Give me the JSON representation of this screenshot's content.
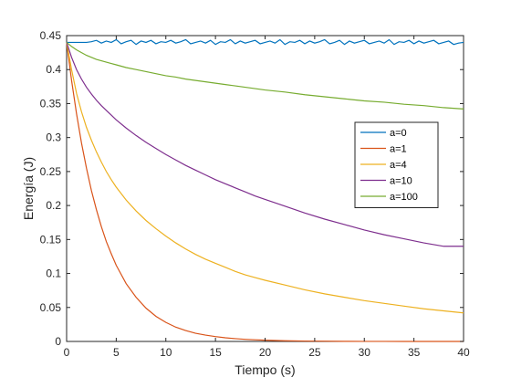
{
  "chart_data": {
    "type": "line",
    "title": "",
    "xlabel": "Tiempo (s)",
    "ylabel": "Energía (J)",
    "xlim": [
      0,
      40
    ],
    "ylim": [
      0,
      0.45
    ],
    "xticks": [
      0,
      5,
      10,
      15,
      20,
      25,
      30,
      35,
      40
    ],
    "yticks": [
      0,
      0.05,
      0.1,
      0.15,
      0.2,
      0.25,
      0.3,
      0.35,
      0.4,
      0.45
    ],
    "ytick_labels": [
      "0",
      "0.05",
      "0.1",
      "0.15",
      "0.2",
      "0.25",
      "0.3",
      "0.35",
      "0.4",
      "0.45"
    ],
    "grid": false,
    "legend_position": "right",
    "x": [
      0,
      0.5,
      1,
      1.5,
      2,
      2.5,
      3,
      3.5,
      4,
      4.5,
      5,
      6,
      7,
      8,
      9,
      10,
      11,
      12,
      13,
      14,
      15,
      16,
      17,
      18,
      19,
      20,
      22,
      24,
      26,
      28,
      30,
      32,
      34,
      36,
      38,
      40
    ],
    "series": [
      {
        "name": "a=0",
        "color": "#0072BD",
        "x": [
          0,
          1,
          2,
          2.5,
          3,
          3.5,
          4,
          4.5,
          5,
          5.5,
          6,
          6.5,
          7,
          7.5,
          8,
          8.5,
          9,
          9.5,
          10,
          10.5,
          11,
          11.5,
          12,
          12.5,
          13,
          13.5,
          14,
          14.5,
          15,
          15.5,
          16,
          16.5,
          17,
          17.5,
          18,
          18.5,
          19,
          19.5,
          20,
          20.5,
          21,
          21.5,
          22,
          22.5,
          23,
          23.5,
          24,
          24.5,
          25,
          25.5,
          26,
          26.5,
          27,
          27.5,
          28,
          28.5,
          29,
          29.5,
          30,
          30.5,
          31,
          31.5,
          32,
          32.5,
          33,
          33.5,
          34,
          34.5,
          35,
          35.5,
          36,
          36.5,
          37,
          37.5,
          38,
          38.5,
          39,
          39.5,
          40
        ],
        "values": [
          0.44,
          0.44,
          0.44,
          0.441,
          0.443,
          0.439,
          0.442,
          0.44,
          0.444,
          0.438,
          0.441,
          0.443,
          0.437,
          0.442,
          0.44,
          0.443,
          0.438,
          0.441,
          0.44,
          0.443,
          0.439,
          0.441,
          0.444,
          0.438,
          0.44,
          0.442,
          0.439,
          0.443,
          0.437,
          0.441,
          0.44,
          0.444,
          0.438,
          0.442,
          0.439,
          0.441,
          0.443,
          0.438,
          0.44,
          0.442,
          0.439,
          0.444,
          0.437,
          0.441,
          0.44,
          0.443,
          0.438,
          0.442,
          0.439,
          0.441,
          0.444,
          0.438,
          0.44,
          0.443,
          0.437,
          0.442,
          0.439,
          0.441,
          0.443,
          0.438,
          0.44,
          0.442,
          0.439,
          0.444,
          0.437,
          0.441,
          0.44,
          0.443,
          0.438,
          0.442,
          0.439,
          0.441,
          0.443,
          0.438,
          0.44,
          0.442,
          0.437,
          0.439,
          0.44
        ]
      },
      {
        "name": "a=1",
        "color": "#D95319",
        "values": [
          0.44,
          0.384,
          0.335,
          0.292,
          0.255,
          0.222,
          0.194,
          0.169,
          0.147,
          0.129,
          0.112,
          0.085,
          0.065,
          0.049,
          0.037,
          0.028,
          0.021,
          0.016,
          0.012,
          0.0093,
          0.0071,
          0.0054,
          0.0041,
          0.0031,
          0.0024,
          0.0018,
          0.001,
          0.0006,
          0.0004,
          0.0002,
          0.0001,
          0.0001,
          0,
          0,
          0,
          0
        ]
      },
      {
        "name": "a=4",
        "color": "#EDB120",
        "values": [
          0.44,
          0.4,
          0.365,
          0.338,
          0.315,
          0.296,
          0.279,
          0.264,
          0.25,
          0.238,
          0.227,
          0.208,
          0.192,
          0.178,
          0.166,
          0.155,
          0.145,
          0.136,
          0.128,
          0.121,
          0.115,
          0.109,
          0.103,
          0.098,
          0.094,
          0.09,
          0.083,
          0.076,
          0.07,
          0.065,
          0.06,
          0.056,
          0.052,
          0.048,
          0.045,
          0.042
        ]
      },
      {
        "name": "a=10",
        "color": "#7E2F8E",
        "values": [
          0.44,
          0.418,
          0.4,
          0.386,
          0.374,
          0.364,
          0.355,
          0.347,
          0.34,
          0.333,
          0.326,
          0.314,
          0.303,
          0.293,
          0.284,
          0.275,
          0.267,
          0.259,
          0.252,
          0.245,
          0.238,
          0.232,
          0.226,
          0.22,
          0.214,
          0.209,
          0.199,
          0.189,
          0.18,
          0.172,
          0.164,
          0.157,
          0.151,
          0.145,
          0.14,
          0.14
        ]
      },
      {
        "name": "a=100",
        "color": "#77AC30",
        "values": [
          0.44,
          0.434,
          0.429,
          0.425,
          0.421,
          0.418,
          0.415,
          0.413,
          0.411,
          0.409,
          0.407,
          0.403,
          0.4,
          0.397,
          0.394,
          0.391,
          0.389,
          0.386,
          0.384,
          0.382,
          0.38,
          0.378,
          0.376,
          0.374,
          0.372,
          0.37,
          0.367,
          0.363,
          0.36,
          0.357,
          0.354,
          0.352,
          0.349,
          0.347,
          0.344,
          0.342
        ]
      }
    ]
  }
}
